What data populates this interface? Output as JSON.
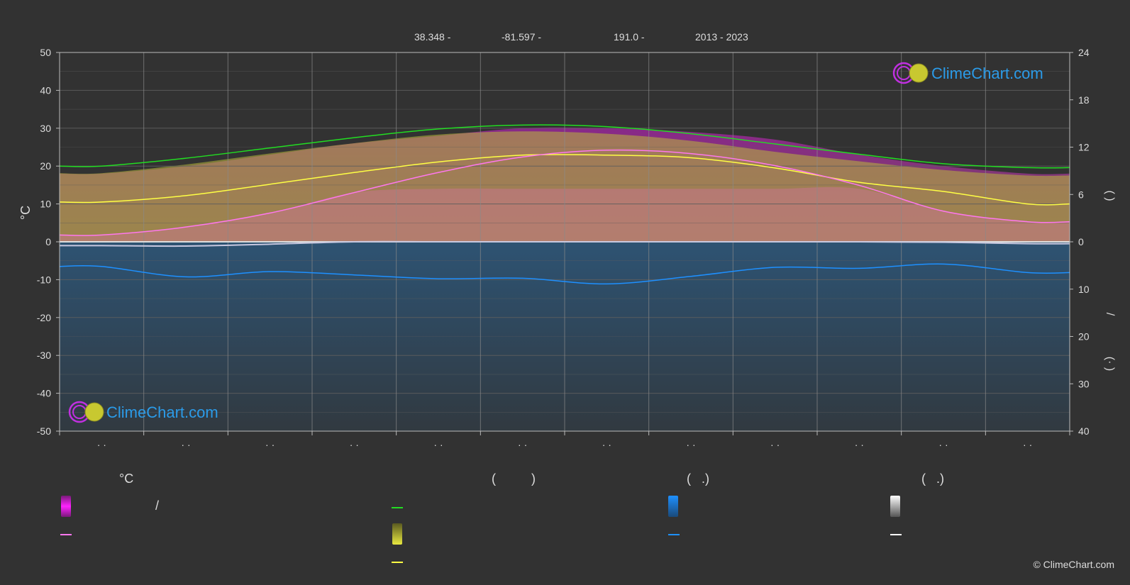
{
  "header": {
    "items": [
      "38.348 -",
      "-81.597 -",
      "191.0 -",
      "2013 - 2023"
    ]
  },
  "watermark": {
    "text": "ClimeChart.com"
  },
  "copyright": "© ClimeChart.com",
  "colors": {
    "background": "#323232",
    "grid": "#5e5e5e",
    "sunshine": "#22dd22",
    "daylight_fill": "#b8b83a",
    "temp_max_fill": "#d020d0",
    "temp_mean_max": "#ffff44",
    "temp_mean_min": "#ff77ee",
    "rain_fill": "#2a6ea8",
    "rain_line": "#1e90ff",
    "snow_line": "#ffffff",
    "watermark_text": "#2b9be8"
  },
  "legend": {
    "col1": {
      "header": "°C",
      "row1_text": "/"
    },
    "col2": {
      "header": "(          )"
    },
    "col3": {
      "header": "(   .)"
    },
    "col4": {
      "header": "(   .)"
    }
  },
  "chart_data": {
    "type": "line",
    "months": [
      "· ·",
      "· ·",
      "· ·",
      "· ·",
      "· ·",
      "· ·",
      "· ·",
      "· ·",
      "· ·",
      "· ·",
      "· ·",
      "· ·"
    ],
    "left_axis": {
      "label": "°C",
      "ylim": [
        -50,
        50
      ],
      "ticks": [
        "50",
        "40",
        "30",
        "20",
        "10",
        "0",
        "-10",
        "-20",
        "-30",
        "-40",
        "-50"
      ]
    },
    "right_axis_top": {
      "label": "(  )",
      "ylim": [
        0,
        24
      ],
      "ticks": [
        "24",
        "18",
        "12",
        "6",
        "0"
      ]
    },
    "right_axis_bottom": {
      "label": "(·  )",
      "ylim": [
        0,
        40
      ],
      "ticks": [
        "10",
        "20",
        "30",
        "40"
      ]
    },
    "right_axis_mid_label": "/",
    "grid": true,
    "series": [
      {
        "key": "sunshine_hours",
        "axis": "hours",
        "values": [
          9.6,
          10.6,
          11.9,
          13.2,
          14.3,
          14.8,
          14.6,
          13.7,
          12.4,
          11.1,
          9.9,
          9.4
        ]
      },
      {
        "key": "daylight_hours",
        "axis": "hours",
        "values": [
          8.7,
          9.8,
          11.2,
          12.5,
          13.6,
          14.0,
          13.7,
          12.8,
          11.4,
          10.2,
          9.1,
          8.4
        ]
      },
      {
        "key": "temp_mean_max",
        "axis": "temp",
        "values": [
          10.5,
          12.2,
          15.2,
          18.3,
          21.1,
          22.9,
          22.9,
          22.2,
          19.5,
          15.7,
          13.3,
          10.0
        ]
      },
      {
        "key": "temp_mean_min",
        "axis": "temp",
        "values": [
          1.8,
          3.9,
          7.6,
          13.0,
          18.3,
          22.4,
          24.2,
          23.3,
          20.1,
          14.9,
          8.1,
          5.3
        ]
      },
      {
        "key": "temp_max_band",
        "axis": "temp",
        "values": [
          18,
          20,
          23,
          26,
          28,
          30,
          30,
          29,
          27,
          23,
          20,
          18
        ]
      },
      {
        "key": "precipitation",
        "axis": "mm",
        "values": [
          5.2,
          7.4,
          6.3,
          7.0,
          7.8,
          7.7,
          8.9,
          7.3,
          5.4,
          5.6,
          4.7,
          6.5
        ]
      },
      {
        "key": "snowfall",
        "axis": "mm",
        "values": [
          0.8,
          0.9,
          0.5,
          0.0,
          0.0,
          0.0,
          0.0,
          0.0,
          0.0,
          0.0,
          0.1,
          0.4
        ]
      }
    ]
  }
}
